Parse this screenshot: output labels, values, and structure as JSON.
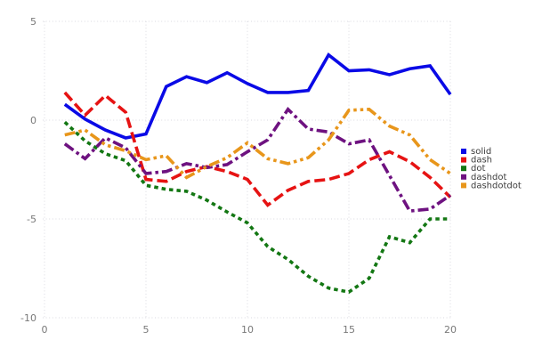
{
  "chart_data": {
    "type": "line",
    "title": "",
    "xlabel": "",
    "ylabel": "",
    "x_range": [
      0,
      20
    ],
    "y_range": [
      5,
      -10
    ],
    "x_ticks": [
      0,
      5,
      10,
      15,
      20
    ],
    "y_ticks": [
      5,
      0,
      -5,
      -10
    ],
    "grid": true,
    "grid_style": "dotted",
    "legend_position": "right",
    "x": [
      1,
      2,
      3,
      4,
      5,
      6,
      7,
      8,
      9,
      10,
      11,
      12,
      13,
      14,
      15,
      16,
      17,
      18,
      19,
      20
    ],
    "series": [
      {
        "name": "solid",
        "style": "solid",
        "color": "#0a0ae6",
        "values": [
          0.8,
          0.05,
          -0.5,
          -0.9,
          -0.7,
          1.7,
          2.2,
          1.9,
          2.4,
          1.85,
          1.4,
          1.4,
          1.5,
          3.3,
          2.5,
          2.55,
          2.3,
          2.6,
          2.75,
          1.3
        ]
      },
      {
        "name": "dash",
        "style": "dash",
        "color": "#e61313",
        "values": [
          1.4,
          0.25,
          1.25,
          0.4,
          -3.0,
          -3.1,
          -2.6,
          -2.35,
          -2.6,
          -3.0,
          -4.3,
          -3.55,
          -3.1,
          -3.0,
          -2.7,
          -2.0,
          -1.6,
          -2.1,
          -2.9,
          -3.9
        ]
      },
      {
        "name": "dot",
        "style": "dot",
        "color": "#137713",
        "values": [
          -0.1,
          -1.05,
          -1.7,
          -2.05,
          -3.3,
          -3.5,
          -3.6,
          -4.05,
          -4.65,
          -5.2,
          -6.4,
          -7.05,
          -7.9,
          -8.5,
          -8.7,
          -8.0,
          -5.9,
          -6.2,
          -5.0,
          -5.0
        ]
      },
      {
        "name": "dashdot",
        "style": "dashdot",
        "color": "#6e1280",
        "values": [
          -1.2,
          -1.95,
          -0.9,
          -1.4,
          -2.7,
          -2.6,
          -2.2,
          -2.4,
          -2.25,
          -1.6,
          -1.0,
          0.55,
          -0.45,
          -0.6,
          -1.2,
          -1.0,
          -2.8,
          -4.6,
          -4.5,
          -3.8
        ]
      },
      {
        "name": "dashdotdot",
        "style": "dashdotdot",
        "color": "#e8961b",
        "values": [
          -0.75,
          -0.5,
          -1.25,
          -1.55,
          -2.0,
          -1.8,
          -2.9,
          -2.35,
          -1.9,
          -1.15,
          -1.95,
          -2.2,
          -1.9,
          -1.0,
          0.5,
          0.55,
          -0.3,
          -0.75,
          -2.0,
          -2.7
        ]
      }
    ],
    "colors": {
      "tick_label": "#787878",
      "grid_line": "#d9d9e0",
      "legend_text": "#3c3c3c",
      "background": "#ffffff"
    }
  }
}
